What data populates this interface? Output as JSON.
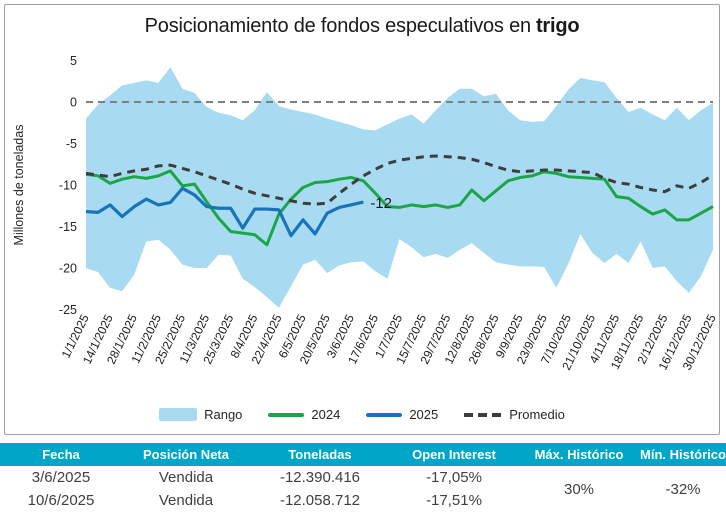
{
  "title": {
    "main": "Posicionamiento de fondos especulativos en",
    "bold": "trigo"
  },
  "colors": {
    "range": "#a8dbf2",
    "line_2024": "#1aa546",
    "line_2025": "#1973b8",
    "promedio": "#3d3d3d",
    "zero_line": "#7f7f7f",
    "table_header_bg": "#00a5c8",
    "table_header_text": "#ffffff",
    "body_text": "#404040",
    "axis_text": "#1a1a1a",
    "card_border": "#a0a0a0"
  },
  "chart_data": {
    "type": "area",
    "title": "Posicionamiento de fondos especulativos en trigo",
    "ylabel": "Millones de toneladas",
    "ylim": [
      -25,
      5
    ],
    "y_ticks": [
      "5",
      "0",
      "-5",
      "-10",
      "-15",
      "-20",
      "-25"
    ],
    "y_tick_values": [
      5,
      0,
      -5,
      -10,
      -15,
      -20,
      -25
    ],
    "zero_line": true,
    "legend_position": "bottom",
    "x_tick_labels": [
      "1/1/2025",
      "14/1/2025",
      "28/1/2025",
      "11/2/2025",
      "25/2/2025",
      "11/3/2025",
      "25/3/2025",
      "8/4/2025",
      "22/4/2025",
      "6/5/2025",
      "20/5/2025",
      "3/6/2025",
      "17/6/2025",
      "1/7/2025",
      "15/7/2025",
      "29/7/2025",
      "12/8/2025",
      "26/8/2025",
      "9/9/2025",
      "23/9/2025",
      "7/10/2025",
      "21/10/2025",
      "4/11/2025",
      "18/11/2025",
      "2/12/2025",
      "16/12/2025",
      "30/12/2025"
    ],
    "weeks_total": 53,
    "series": [
      {
        "name": "Rango",
        "type": "band",
        "upper": [
          -2.0,
          -0.3,
          0.8,
          2.0,
          2.3,
          2.6,
          2.3,
          4.2,
          1.6,
          1.1,
          -0.6,
          -1.3,
          -1.6,
          -2.2,
          -1.0,
          1.2,
          -0.5,
          -0.9,
          -1.2,
          -1.5,
          -2.0,
          -2.4,
          -2.8,
          -3.3,
          -3.4,
          -2.7,
          -2.0,
          -1.5,
          -2.6,
          -1.0,
          0.5,
          1.6,
          1.6,
          0.7,
          1.0,
          -1.0,
          -2.2,
          -2.4,
          -2.3,
          -0.5,
          1.5,
          2.9,
          2.6,
          2.4,
          0.5,
          -1.2,
          -0.7,
          -1.5,
          -2.2,
          -0.7,
          -2.2,
          -1.0,
          -0.1
        ],
        "lower": [
          -20.0,
          -20.5,
          -22.4,
          -22.8,
          -20.8,
          -16.8,
          -16.6,
          -17.8,
          -19.6,
          -20.0,
          -20.0,
          -18.4,
          -18.5,
          -21.3,
          -22.3,
          -23.5,
          -24.8,
          -22.2,
          -19.6,
          -19.0,
          -20.6,
          -19.7,
          -19.3,
          -19.2,
          -20.4,
          -21.3,
          -16.5,
          -17.5,
          -18.7,
          -18.3,
          -18.8,
          -17.8,
          -17.0,
          -18.2,
          -19.3,
          -19.6,
          -19.8,
          -19.8,
          -19.9,
          -22.4,
          -19.5,
          -15.9,
          -18.2,
          -19.4,
          -18.3,
          -19.4,
          -16.8,
          -20.0,
          -19.8,
          -21.6,
          -23.0,
          -21.0,
          -17.8
        ]
      },
      {
        "name": "2024",
        "type": "line",
        "values": [
          -8.7,
          -8.9,
          -9.8,
          -9.3,
          -9.0,
          -9.2,
          -8.9,
          -8.3,
          -10.1,
          -9.9,
          -12.0,
          -14.0,
          -15.6,
          -15.8,
          -16.0,
          -17.2,
          -13.5,
          -11.7,
          -10.3,
          -9.7,
          -9.6,
          -9.3,
          -9.1,
          -9.5,
          -11.0,
          -12.6,
          -12.7,
          -12.4,
          -12.6,
          -12.4,
          -12.7,
          -12.4,
          -10.6,
          -11.9,
          -10.7,
          -9.5,
          -9.1,
          -8.9,
          -8.4,
          -8.6,
          -9.0,
          -9.1,
          -9.2,
          -9.3,
          -11.4,
          -11.6,
          -12.6,
          -13.5,
          -13.0,
          -14.2,
          -14.2,
          -13.4,
          -12.6
        ]
      },
      {
        "name": "2025",
        "type": "line",
        "values": [
          -13.2,
          -13.3,
          -12.4,
          -13.8,
          -12.6,
          -11.7,
          -12.4,
          -12.1,
          -10.4,
          -11.2,
          -12.6,
          -12.8,
          -12.8,
          -15.2,
          -12.9,
          -12.9,
          -13.0,
          -16.1,
          -14.2,
          -15.9,
          -13.4,
          -12.7,
          -12.39,
          -12.06
        ]
      },
      {
        "name": "Promedio",
        "type": "dashed-line",
        "values": [
          -8.6,
          -8.8,
          -9.0,
          -8.6,
          -8.3,
          -8.1,
          -7.7,
          -7.6,
          -8.0,
          -8.4,
          -8.9,
          -9.4,
          -9.9,
          -10.5,
          -11.0,
          -11.3,
          -11.6,
          -11.9,
          -12.2,
          -12.3,
          -12.2,
          -11.0,
          -9.9,
          -8.9,
          -8.1,
          -7.4,
          -7.0,
          -6.8,
          -6.6,
          -6.5,
          -6.6,
          -6.7,
          -6.9,
          -7.3,
          -7.8,
          -8.2,
          -8.4,
          -8.3,
          -8.2,
          -8.2,
          -8.3,
          -8.4,
          -8.5,
          -9.2,
          -9.7,
          -9.9,
          -10.3,
          -10.6,
          -10.8,
          -10.1,
          -10.4,
          -9.7,
          -8.8
        ]
      }
    ],
    "annotation": {
      "text": "-12",
      "week": 23,
      "value": -12.06
    }
  },
  "legend": [
    {
      "label": "Rango",
      "swatch": "area"
    },
    {
      "label": "2024",
      "swatch": "line"
    },
    {
      "label": "2025",
      "swatch": "line"
    },
    {
      "label": "Promedio",
      "swatch": "dash"
    }
  ],
  "table": {
    "headers": [
      "Fecha",
      "Posición Neta",
      "Toneladas",
      "Open Interest",
      "Máx. Histórico",
      "Mín. Histórico"
    ],
    "rows": [
      [
        "3/6/2025",
        "Vendida",
        "-12.390.416",
        "-17,05%"
      ],
      [
        "10/6/2025",
        "Vendida",
        "-12.058.712",
        "-17,51%"
      ]
    ],
    "max_historico": "30%",
    "min_historico": "-32%"
  }
}
